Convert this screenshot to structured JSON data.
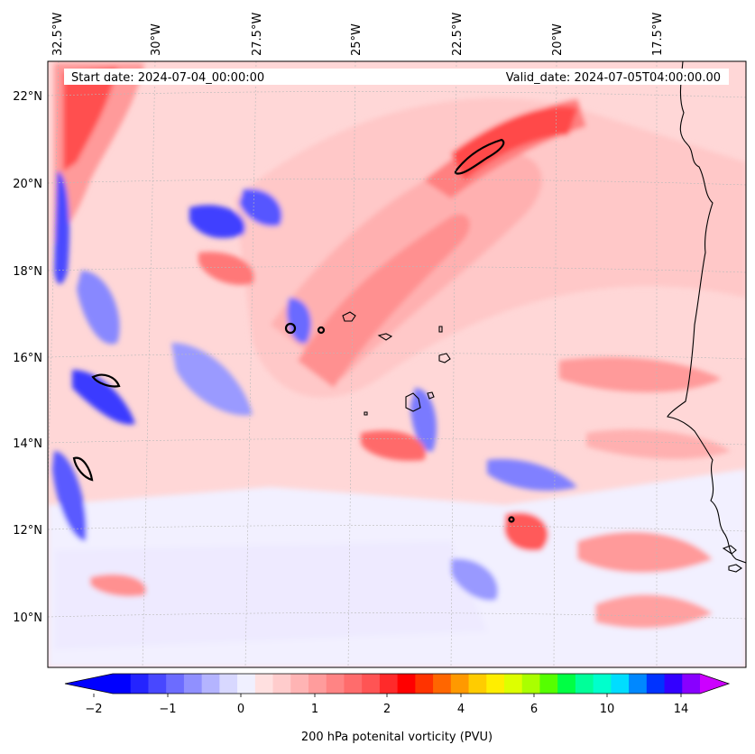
{
  "header": {
    "start_date": "Start date: 2024-07-04_00:00:00",
    "valid_date": "Valid_date: 2024-07-05T04:00:00.00"
  },
  "map": {
    "lon_labels": [
      "32.5°W",
      "30°W",
      "27.5°W",
      "25°W",
      "22.5°W",
      "20°W",
      "17.5°W"
    ],
    "lat_labels": [
      "22°N",
      "20°N",
      "18°N",
      "16°N",
      "14°N",
      "12°N",
      "10°N"
    ],
    "background_color": "#ffd5d5"
  },
  "colorbar": {
    "label": "200 hPa potenital vorticity (PVU)",
    "tick_labels": [
      "−2",
      "−1",
      "0",
      "1",
      "2",
      "4",
      "6",
      "10",
      "14"
    ],
    "colors": [
      "#0000ff",
      "#2424ff",
      "#4848ff",
      "#6c6cff",
      "#9090ff",
      "#b4b4ff",
      "#d8d8ff",
      "#f0f0ff",
      "#ffe0e0",
      "#ffcccc",
      "#ffb4b4",
      "#ff9c9c",
      "#ff8484",
      "#ff6c6c",
      "#ff5454",
      "#ff2a2a",
      "#ff0000",
      "#ff3300",
      "#ff6600",
      "#ff9900",
      "#ffcc00",
      "#ffee00",
      "#ddff00",
      "#aaff00",
      "#55ff00",
      "#00ff44",
      "#00ff99",
      "#00ffcc",
      "#00ddff",
      "#0088ff",
      "#0033ff",
      "#3300ff",
      "#8800ff"
    ],
    "under_color": "#0000ff",
    "over_color": "#cc00ff"
  }
}
